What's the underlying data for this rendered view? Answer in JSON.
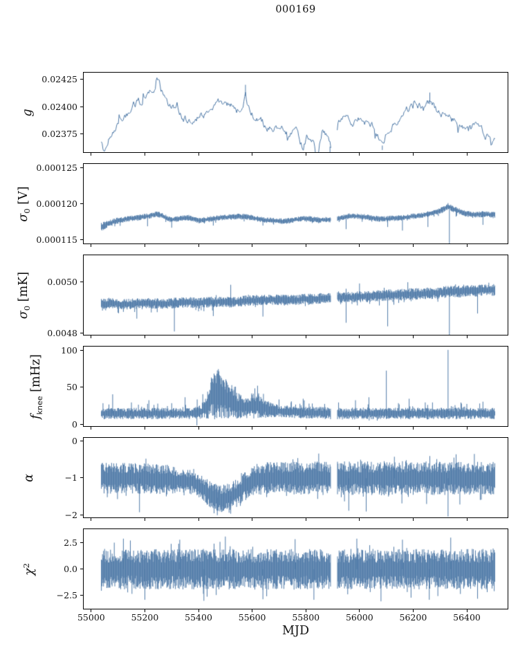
{
  "chart_data": {
    "type": "line",
    "title": "000169",
    "xlabel": "MJD",
    "line_color": "#4e79a7",
    "x_lim": [
      54972,
      56552
    ],
    "x_ticks": [
      55000,
      55200,
      55400,
      55600,
      55800,
      56000,
      56200,
      56400
    ],
    "x_tick_labels": [
      "55000",
      "55200",
      "55400",
      "55600",
      "55800",
      "56000",
      "56200",
      "56400"
    ],
    "data_range": [
      55038,
      56505
    ],
    "gap": [
      55893,
      55917
    ],
    "panels": [
      {
        "id": "g",
        "style": "line",
        "seed": 11,
        "ylabel": {
          "base": "g",
          "sub": "",
          "sup": "",
          "unit": ""
        },
        "ylabel_plain": "g",
        "ylim": [
          0.02359,
          0.02431
        ],
        "yticks": [
          {
            "label": "0.02425",
            "value": 0.02425
          },
          {
            "label": "0.02400",
            "value": 0.024
          },
          {
            "label": "0.02375",
            "value": 0.02375
          }
        ],
        "noise": 3e-05,
        "center": {
          "x": [
            55038,
            55052,
            55066,
            55080,
            55100,
            55125,
            55150,
            55175,
            55200,
            55230,
            55252,
            55268,
            55290,
            55315,
            55340,
            55365,
            55385,
            55410,
            55435,
            55460,
            55485,
            55505,
            55530,
            55555,
            55575,
            55590,
            55615,
            55640,
            55665,
            55690,
            55715,
            55740,
            55765,
            55790,
            55805,
            55825,
            55845,
            55862,
            55880,
            55895,
            55918,
            55940,
            55965,
            55990,
            56015,
            56040,
            56065,
            56085,
            56105,
            56130,
            56155,
            56180,
            56205,
            56230,
            56255,
            56280,
            56305,
            56330,
            56355,
            56380,
            56405,
            56430,
            56455,
            56480,
            56505
          ],
          "v": [
            0.02366,
            0.02358,
            0.02375,
            0.0238,
            0.02384,
            0.02391,
            0.02397,
            0.02403,
            0.02407,
            0.02412,
            0.0242,
            0.0241,
            0.024,
            0.02396,
            0.02391,
            0.02388,
            0.02386,
            0.02392,
            0.02397,
            0.024,
            0.02402,
            0.02403,
            0.02399,
            0.02396,
            0.0241,
            0.02395,
            0.02388,
            0.02384,
            0.02381,
            0.02379,
            0.02383,
            0.02379,
            0.02375,
            0.02362,
            0.02374,
            0.02366,
            0.02358,
            0.02378,
            0.02372,
            0.0236,
            0.0238,
            0.02386,
            0.0239,
            0.02387,
            0.0239,
            0.02386,
            0.02381,
            0.02365,
            0.02378,
            0.02386,
            0.02392,
            0.02396,
            0.024,
            0.02402,
            0.02404,
            0.02399,
            0.02394,
            0.0239,
            0.02387,
            0.02384,
            0.02377,
            0.02381,
            0.02378,
            0.02375,
            0.02371
          ]
        },
        "spikes": [
          [
            55575,
            0.0242
          ],
          [
            55845,
            0.02352
          ],
          [
            55890,
            0.02353
          ],
          [
            56085,
            0.02361
          ],
          [
            56262,
            0.02413
          ]
        ]
      },
      {
        "id": "sigma0-v",
        "style": "band",
        "seed": 22,
        "ylabel": {
          "base": "σ",
          "sub": "0",
          "sup": "",
          "unit": " [V]"
        },
        "ylabel_plain": "sigma0 [V]",
        "ylim": [
          0.0001145,
          0.0001256
        ],
        "yticks": [
          {
            "label": "0.000125",
            "value": 0.000125
          },
          {
            "label": "0.000120",
            "value": 0.00012
          },
          {
            "label": "0.000115",
            "value": 0.000115
          }
        ],
        "center": {
          "x": [
            55038,
            55060,
            55090,
            55130,
            55170,
            55210,
            55245,
            55265,
            55295,
            55330,
            55365,
            55400,
            55440,
            55480,
            55520,
            55560,
            55600,
            55640,
            55680,
            55720,
            55760,
            55800,
            55840,
            55880,
            55920,
            55960,
            56000,
            56040,
            56080,
            56120,
            56160,
            56200,
            56240,
            56280,
            56310,
            56330,
            56350,
            56380,
            56420,
            56460,
            56505
          ],
          "v": [
            0.0001168,
            0.0001172,
            0.0001176,
            0.0001179,
            0.0001181,
            0.0001183,
            0.0001186,
            0.0001184,
            0.0001178,
            0.000118,
            0.0001181,
            0.0001177,
            0.0001179,
            0.0001181,
            0.0001182,
            0.0001183,
            0.0001181,
            0.0001178,
            0.0001177,
            0.0001176,
            0.0001178,
            0.000118,
            0.0001178,
            0.0001178,
            0.000118,
            0.0001183,
            0.0001183,
            0.0001181,
            0.0001179,
            0.000118,
            0.0001181,
            0.0001183,
            0.0001185,
            0.0001188,
            0.0001192,
            0.0001197,
            0.0001193,
            0.0001189,
            0.0001185,
            0.0001186,
            0.0001185
          ]
        },
        "amp": {
          "x": [
            55038,
            55070,
            55120,
            56280,
            56330,
            56505
          ],
          "v": [
            5.5e-07,
            4.5e-07,
            3.6e-07,
            3.6e-07,
            4.2e-07,
            3.8e-07
          ]
        },
        "whiskers": {
          "prob": 0.06,
          "scale": 1.2,
          "bias": -1
        },
        "spikes": [
          [
            55210,
            0.0001169
          ],
          [
            55300,
            0.0001167
          ],
          [
            55455,
            0.000117
          ],
          [
            55640,
            0.000117
          ],
          [
            55950,
            0.0001165
          ],
          [
            56105,
            0.0001168
          ],
          [
            56160,
            0.0001163
          ],
          [
            56255,
            0.0001168
          ],
          [
            56335,
            0.000114
          ],
          [
            56460,
            0.0001171
          ]
        ]
      },
      {
        "id": "sigma0-mk",
        "style": "band",
        "seed": 33,
        "ylabel": {
          "base": "σ",
          "sub": "0",
          "sup": "",
          "unit": " [mK]"
        },
        "ylabel_plain": "sigma0 [mK]",
        "ylim": [
          0.004795,
          0.005105
        ],
        "yticks": [
          {
            "label": "0.0050",
            "value": 0.005
          },
          {
            "label": "0.0048",
            "value": 0.0048
          }
        ],
        "center": {
          "x": [
            55038,
            55080,
            55120,
            55160,
            55200,
            55240,
            55280,
            55320,
            55360,
            55400,
            55440,
            55480,
            55520,
            55560,
            55600,
            55640,
            55680,
            55720,
            55760,
            55800,
            55840,
            55880,
            55920,
            55960,
            56000,
            56040,
            56080,
            56120,
            56160,
            56200,
            56240,
            56280,
            56320,
            56350,
            56380,
            56410,
            56440,
            56470,
            56505
          ],
          "v": [
            0.004915,
            0.004917,
            0.004914,
            0.004916,
            0.004919,
            0.004917,
            0.004915,
            0.00492,
            0.004922,
            0.004918,
            0.004922,
            0.004925,
            0.004921,
            0.004926,
            0.004929,
            0.004931,
            0.004932,
            0.00493,
            0.004931,
            0.004934,
            0.004936,
            0.004938,
            0.00494,
            0.004941,
            0.004943,
            0.004945,
            0.004948,
            0.004951,
            0.004952,
            0.004954,
            0.004956,
            0.004958,
            0.004962,
            0.004965,
            0.004963,
            0.004966,
            0.004967,
            0.004969,
            0.00497
          ]
        },
        "amp": {
          "x": [
            55038,
            55900,
            56100,
            56505
          ],
          "v": [
            1.9e-05,
            1.9e-05,
            2.1e-05,
            2.1e-05
          ]
        },
        "whiskers": {
          "prob": 0.08,
          "scale": 1.0,
          "bias": -0.5
        },
        "spikes": [
          [
            55170,
            0.004858
          ],
          [
            55310,
            0.004808
          ],
          [
            55455,
            0.004868
          ],
          [
            55520,
            0.00499
          ],
          [
            55640,
            0.004866
          ],
          [
            55950,
            0.004842
          ],
          [
            56000,
            0.004995
          ],
          [
            56105,
            0.004828
          ],
          [
            56180,
            0.005
          ],
          [
            56335,
            0.004752
          ],
          [
            56440,
            0.004878
          ]
        ]
      },
      {
        "id": "fknee",
        "style": "band",
        "seed": 44,
        "ylabel": {
          "base": "f",
          "sub_sans": "knee",
          "sub": "",
          "sup": "",
          "unit": " [mHz]"
        },
        "ylabel_plain": "f_knee [mHz]",
        "ylim": [
          -2,
          105.5
        ],
        "yticks": [
          {
            "label": "100",
            "value": 100
          },
          {
            "label": "50",
            "value": 50
          },
          {
            "label": "0",
            "value": 0
          }
        ],
        "center": {
          "x": [
            55038,
            55380,
            55410,
            55435,
            55455,
            55470,
            55490,
            55510,
            55530,
            55560,
            55585,
            55605,
            55625,
            55650,
            55680,
            55710,
            55750,
            55800,
            55850,
            55900,
            56000,
            56505
          ],
          "v": [
            15,
            15,
            17,
            28,
            40,
            42,
            38,
            33,
            28,
            24,
            23,
            27,
            24,
            21,
            19,
            18,
            17,
            16.5,
            16,
            15,
            15,
            15
          ]
        },
        "amp": {
          "x": [
            55038,
            55380,
            55410,
            55435,
            55455,
            55470,
            55490,
            55510,
            55530,
            55560,
            55585,
            55605,
            55625,
            55650,
            55680,
            55710,
            55750,
            56505
          ],
          "v": [
            7,
            7,
            9,
            18,
            30,
            32,
            27,
            22,
            18,
            14,
            13,
            17,
            14,
            11,
            9,
            8,
            7.5,
            7
          ]
        },
        "whiskers": {
          "prob": 0.1,
          "scale": 1.3,
          "bias": 0.9
        },
        "spikes": [
          [
            55080,
            41
          ],
          [
            55150,
            30
          ],
          [
            55215,
            33
          ],
          [
            55300,
            29
          ],
          [
            55350,
            37
          ],
          [
            55395,
            34
          ],
          [
            55610,
            49
          ],
          [
            55700,
            34
          ],
          [
            55745,
            30
          ],
          [
            55790,
            35
          ],
          [
            55870,
            28
          ],
          [
            55985,
            33
          ],
          [
            56035,
            37
          ],
          [
            56100,
            73
          ],
          [
            56145,
            29
          ],
          [
            56185,
            35
          ],
          [
            56245,
            30
          ],
          [
            56330,
            101
          ],
          [
            56400,
            28
          ],
          [
            56460,
            31
          ]
        ]
      },
      {
        "id": "alpha",
        "style": "band",
        "seed": 55,
        "ylabel": {
          "base": "α",
          "sub": "",
          "sup": "",
          "unit": ""
        },
        "ylabel_plain": "alpha",
        "ylim": [
          -2.06,
          0.09
        ],
        "yticks": [
          {
            "label": "0",
            "value": 0
          },
          {
            "label": "−1",
            "value": -1
          },
          {
            "label": "−2",
            "value": -2
          }
        ],
        "center": {
          "x": [
            55038,
            55150,
            55250,
            55300,
            55340,
            55380,
            55420,
            55450,
            55480,
            55510,
            55540,
            55565,
            55590,
            55620,
            55660,
            56505
          ],
          "v": [
            -1.0,
            -1.0,
            -1.02,
            -1.05,
            -1.08,
            -1.1,
            -1.3,
            -1.48,
            -1.55,
            -1.52,
            -1.42,
            -1.25,
            -1.1,
            -1.03,
            -1.0,
            -1.0
          ]
        },
        "amp": {
          "x": [
            55038,
            55290,
            55320,
            55400,
            55430,
            55540,
            55580,
            55620,
            55700,
            55900,
            56505
          ],
          "v": [
            0.38,
            0.38,
            0.3,
            0.28,
            0.33,
            0.35,
            0.35,
            0.4,
            0.4,
            0.42,
            0.42
          ]
        },
        "whiskers": {
          "prob": 0.08,
          "scale": 0.8,
          "bias": -0.3
        },
        "spikes": [
          [
            55180,
            -1.92
          ],
          [
            55470,
            -2.0
          ],
          [
            55520,
            -1.96
          ],
          [
            55960,
            -1.88
          ],
          [
            56025,
            -1.9
          ],
          [
            56130,
            -0.42
          ],
          [
            56330,
            -2.04
          ]
        ]
      },
      {
        "id": "chi2",
        "style": "band",
        "seed": 66,
        "ylabel": {
          "base": "χ",
          "sub": "",
          "sup": "2",
          "unit": ""
        },
        "ylabel_plain": "chi^2",
        "ylim": [
          -3.75,
          3.8
        ],
        "yticks": [
          {
            "label": "2.5",
            "value": 2.5
          },
          {
            "label": "0.0",
            "value": 0.0
          },
          {
            "label": "−2.5",
            "value": -2.5
          }
        ],
        "center": {
          "x": [
            55038,
            56505
          ],
          "v": [
            0,
            0
          ]
        },
        "amp": {
          "x": [
            55038,
            56505
          ],
          "v": [
            1.75,
            1.75
          ]
        },
        "whiskers": {
          "prob": 0.12,
          "scale": 0.6,
          "bias": 0
        },
        "spikes": [
          [
            55120,
            2.9
          ],
          [
            55200,
            -2.9
          ],
          [
            55330,
            2.8
          ],
          [
            55420,
            -3.0
          ],
          [
            55500,
            3.1
          ],
          [
            55640,
            -2.85
          ],
          [
            55760,
            2.85
          ],
          [
            55830,
            -2.9
          ],
          [
            55990,
            2.9
          ],
          [
            56080,
            -3.05
          ],
          [
            56160,
            2.8
          ],
          [
            56260,
            -2.9
          ],
          [
            56340,
            3.0
          ],
          [
            56440,
            -2.8
          ]
        ]
      }
    ]
  }
}
